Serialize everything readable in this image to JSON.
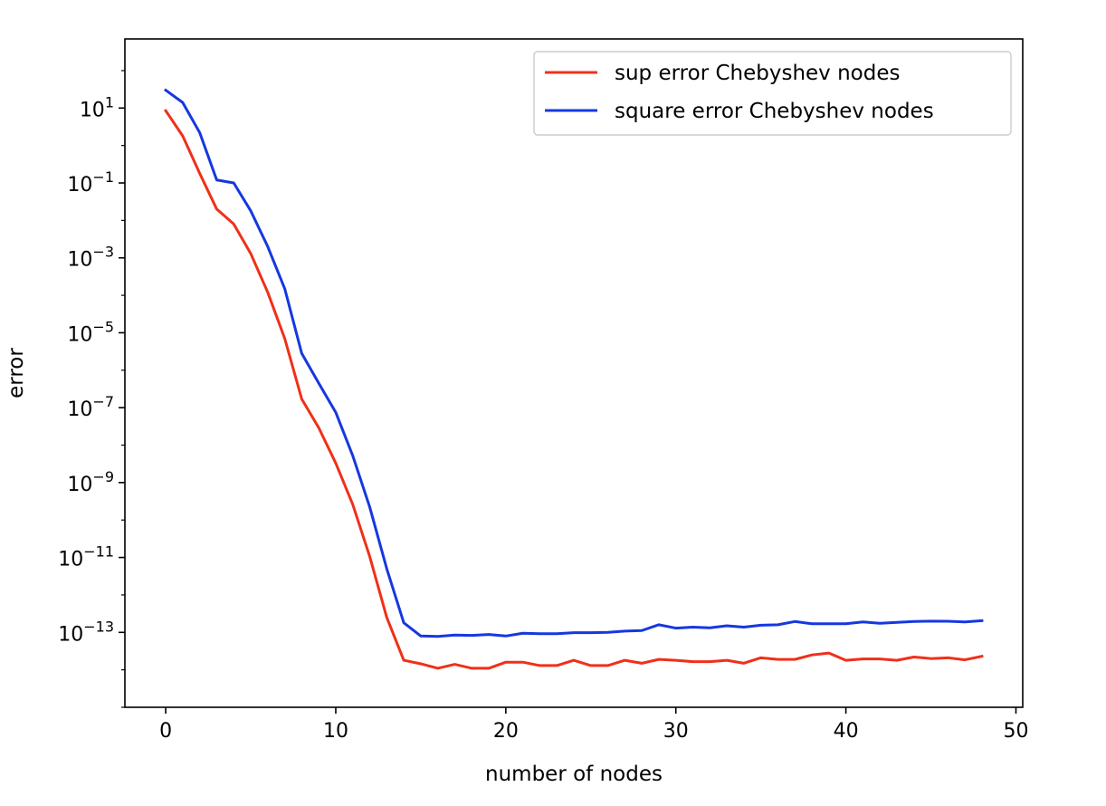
{
  "chart_data": {
    "type": "line",
    "title": "",
    "xlabel": "number of nodes",
    "ylabel": "error",
    "yscale": "log",
    "xlim": [
      -2.4,
      50.4
    ],
    "ylim": [
      1e-15,
      700
    ],
    "xticks": [
      0,
      10,
      20,
      30,
      40,
      50
    ],
    "yticks": [
      {
        "value": 10,
        "base": "10",
        "exp": "1"
      },
      {
        "value": 0.1,
        "base": "10",
        "exp": "−1"
      },
      {
        "value": 0.001,
        "base": "10",
        "exp": "−3"
      },
      {
        "value": 1e-05,
        "base": "10",
        "exp": "−5"
      },
      {
        "value": 1e-07,
        "base": "10",
        "exp": "−7"
      },
      {
        "value": 1e-09,
        "base": "10",
        "exp": "−9"
      },
      {
        "value": 1e-11,
        "base": "10",
        "exp": "−11"
      },
      {
        "value": 1e-13,
        "base": "10",
        "exp": "−13"
      }
    ],
    "grid": false,
    "legend_position": "upper-right",
    "x": [
      0,
      1,
      2,
      3,
      4,
      5,
      6,
      7,
      8,
      9,
      10,
      11,
      12,
      13,
      14,
      15,
      16,
      17,
      18,
      19,
      20,
      21,
      22,
      23,
      24,
      25,
      26,
      27,
      28,
      29,
      30,
      31,
      32,
      33,
      34,
      35,
      36,
      37,
      38,
      39,
      40,
      41,
      42,
      43,
      44,
      45,
      46,
      47,
      48
    ],
    "series": [
      {
        "name": "sup error Chebyshev nodes",
        "color": "#f03018",
        "values": [
          8.5,
          1.8,
          0.18,
          0.02,
          0.008,
          0.0013,
          0.00012,
          7e-06,
          1.7e-07,
          2.9e-08,
          3.3e-09,
          2.6e-10,
          1.05e-11,
          2.5e-13,
          1.8e-14,
          1.45e-14,
          1.1e-14,
          1.4e-14,
          1.1e-14,
          1.1e-14,
          1.6e-14,
          1.6e-14,
          1.3e-14,
          1.3e-14,
          1.8e-14,
          1.3e-14,
          1.3e-14,
          1.8e-14,
          1.5e-14,
          1.9e-14,
          1.8e-14,
          1.65e-14,
          1.65e-14,
          1.8e-14,
          1.5e-14,
          2.1e-14,
          1.9e-14,
          1.9e-14,
          2.5e-14,
          2.8e-14,
          1.8e-14,
          1.95e-14,
          1.95e-14,
          1.8e-14,
          2.2e-14,
          2e-14,
          2.1e-14,
          1.85e-14,
          2.3e-14
        ]
      },
      {
        "name": "square error Chebyshev nodes",
        "color": "#1538e0",
        "values": [
          30,
          14,
          2.2,
          0.12,
          0.1,
          0.018,
          0.002,
          0.00015,
          2.8e-06,
          4.5e-07,
          7.5e-08,
          5.2e-09,
          2.2e-10,
          5e-12,
          1.8e-13,
          8e-14,
          7.8e-14,
          8.5e-14,
          8.3e-14,
          8.8e-14,
          8e-14,
          9.5e-14,
          9.2e-14,
          9.2e-14,
          9.8e-14,
          9.8e-14,
          1e-13,
          1.08e-13,
          1.12e-13,
          1.6e-13,
          1.3e-13,
          1.38e-13,
          1.32e-13,
          1.5e-13,
          1.38e-13,
          1.55e-13,
          1.6e-13,
          1.95e-13,
          1.7e-13,
          1.7e-13,
          1.7e-13,
          1.9e-13,
          1.75e-13,
          1.85e-13,
          1.95e-13,
          2e-13,
          1.98e-13,
          1.9e-13,
          2.05e-13
        ]
      }
    ]
  }
}
